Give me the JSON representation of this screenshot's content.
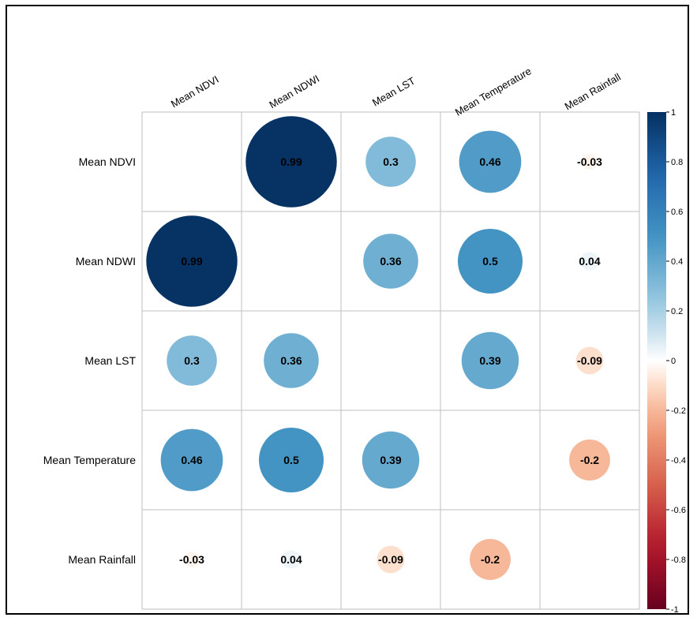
{
  "colors": {
    "frame_border": "#000000",
    "grid": "#bfbfbf",
    "value_text": "#000000",
    "scale_negative": "#67001f",
    "scale_neutral": "#ffffff",
    "scale_positive": "#053061"
  },
  "chart_data": {
    "type": "heatmap",
    "variant": "correlation-matrix-circles",
    "title": "",
    "variables": [
      "Mean NDVI",
      "Mean NDWI",
      "Mean LST",
      "Mean Temperature",
      "Mean Rainfall"
    ],
    "matrix": [
      [
        null,
        0.99,
        0.3,
        0.46,
        -0.03
      ],
      [
        0.99,
        null,
        0.36,
        0.5,
        0.04
      ],
      [
        0.3,
        0.36,
        null,
        0.39,
        -0.09
      ],
      [
        0.46,
        0.5,
        0.39,
        null,
        -0.2
      ],
      [
        -0.03,
        0.04,
        -0.09,
        -0.2,
        null
      ]
    ],
    "diagonal_shown": false,
    "number_labels": "show",
    "color_scale": {
      "range": [
        -1,
        1
      ],
      "ticks": [
        1,
        0.8,
        0.6,
        0.4,
        0.2,
        0,
        -0.2,
        -0.4,
        -0.6,
        -0.8,
        -1
      ],
      "palette": "RdBu",
      "placement": "right"
    },
    "grid": true,
    "column_label_rotation": "-30deg"
  }
}
